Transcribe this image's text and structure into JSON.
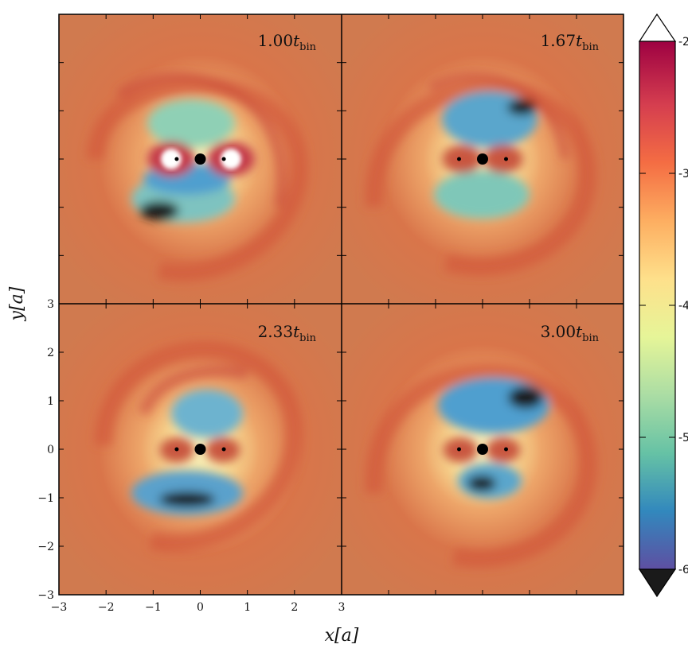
{
  "panels": [
    {
      "time": "1.00",
      "t_symbol": "t",
      "t_subscript": "bin"
    },
    {
      "time": "1.67",
      "t_symbol": "t",
      "t_subscript": "bin"
    },
    {
      "time": "2.33",
      "t_symbol": "t",
      "t_subscript": "bin"
    },
    {
      "time": "3.00",
      "t_symbol": "t",
      "t_subscript": "bin"
    }
  ],
  "axes": {
    "x_title": "x[a]",
    "y_title": "y[a]",
    "x_ticks": [
      "−3",
      "−2",
      "−1",
      "0",
      "1",
      "2",
      "3"
    ],
    "y_ticks": [
      "3",
      "2",
      "1",
      "0",
      "−1",
      "−2",
      "−3"
    ],
    "x_range": [
      -3,
      3
    ],
    "y_range": [
      -3,
      3
    ]
  },
  "colorbar": {
    "ticks": [
      "-2",
      "-3",
      "-4",
      "-5",
      "-6"
    ],
    "range": [
      -6,
      -2
    ],
    "colormap": "Spectral (reversed)",
    "extend": "both",
    "colors": [
      "#5e4fa2",
      "#3288bd",
      "#66c2a5",
      "#abdda4",
      "#e6f598",
      "#fee08b",
      "#fdae61",
      "#f46d43",
      "#d53e4f",
      "#9e0142"
    ]
  },
  "binary": {
    "center": {
      "x": 0,
      "y": 0
    },
    "stars": [
      {
        "x": -0.5,
        "y": 0
      },
      {
        "x": 0.5,
        "y": 0
      }
    ]
  }
}
